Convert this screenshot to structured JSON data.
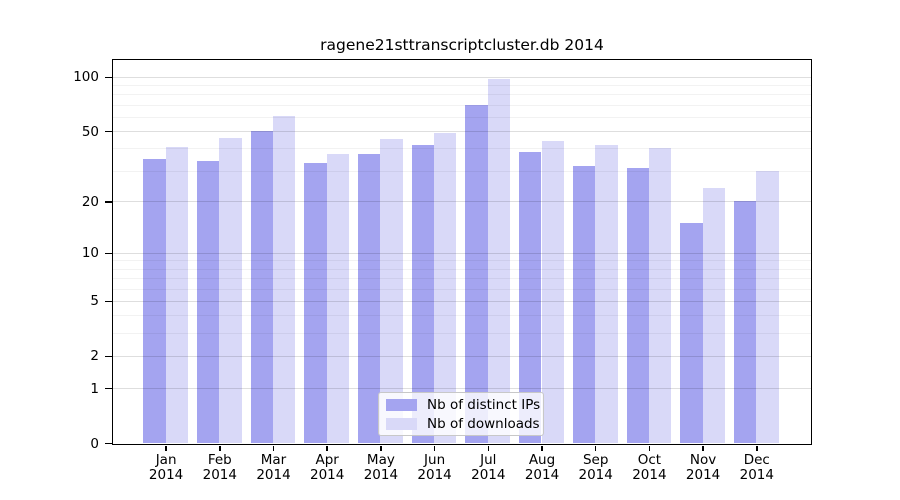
{
  "chart_data": {
    "type": "bar",
    "title": "ragene21sttranscriptcluster.db 2014",
    "categories": [
      "Jan 2014",
      "Feb 2014",
      "Mar 2014",
      "Apr 2014",
      "May 2014",
      "Jun 2014",
      "Jul 2014",
      "Aug 2014",
      "Sep 2014",
      "Oct 2014",
      "Nov 2014",
      "Dec 2014"
    ],
    "series": [
      {
        "name": "Nb of distinct IPs",
        "color": "#a4a4f0",
        "values": [
          35,
          34,
          50,
          33,
          37,
          42,
          70,
          38,
          32,
          31,
          15,
          20
        ]
      },
      {
        "name": "Nb of downloads",
        "color": "#d9d9f8",
        "values": [
          41,
          46,
          61,
          37,
          45,
          49,
          97,
          44,
          42,
          40,
          24,
          30
        ]
      }
    ],
    "yscale": "log1p",
    "yticks": [
      0,
      1,
      2,
      5,
      10,
      20,
      50,
      100
    ],
    "minor_gridlines": [
      3,
      4,
      6,
      7,
      8,
      9,
      30,
      40,
      60,
      70,
      80,
      90
    ],
    "ylim": [
      0,
      124
    ],
    "xlabel": "",
    "ylabel": "",
    "grid": true,
    "legend_position": "bottom-center",
    "colors": {
      "axis": "#000000",
      "major_grid": "rgba(0,0,0,0.13)",
      "minor_grid": "rgba(0,0,0,0.05)"
    }
  }
}
